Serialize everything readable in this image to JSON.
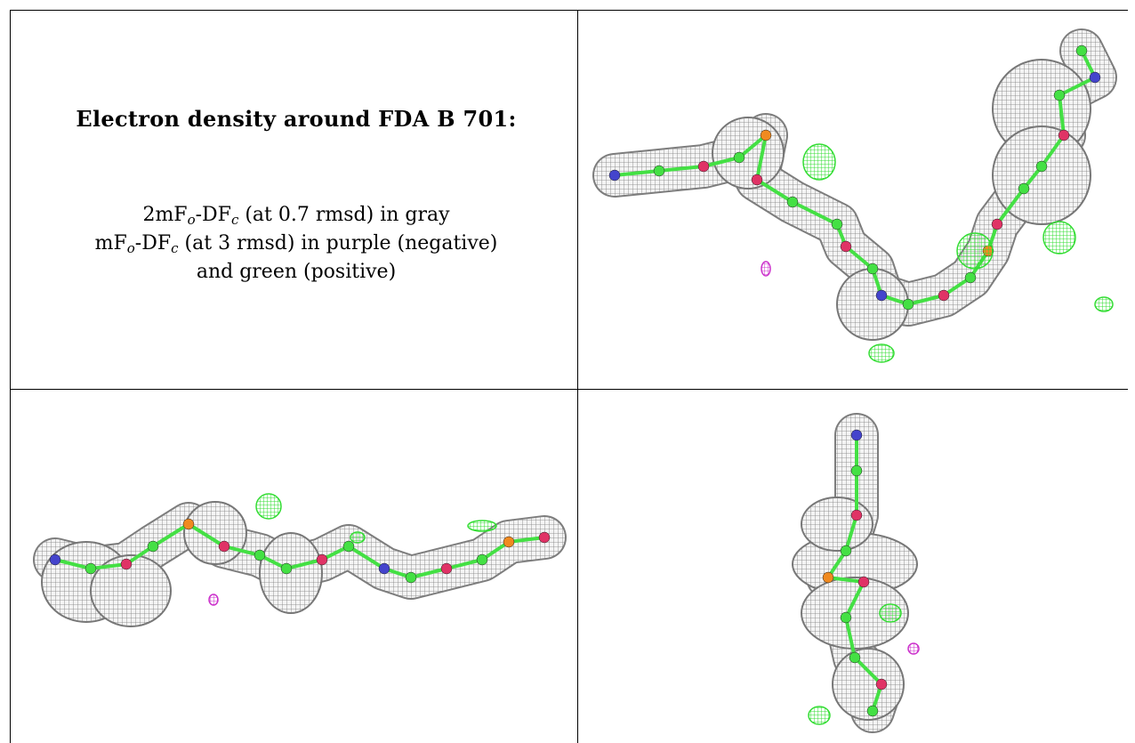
{
  "caption": {
    "title": "Electron density around FDA B 701:",
    "line1": {
      "a": "2mF",
      "b": "o",
      "c": "-DF",
      "d": "c",
      "e": " (at 0.7 rmsd) in gray"
    },
    "line2": {
      "a": "mF",
      "b": "o",
      "c": "-DF",
      "d": "c",
      "e": " (at 3 rmsd) in purple (negative)"
    },
    "line3": "and green (positive)"
  },
  "colors": {
    "map_2fofc": "#8a8a8a",
    "map_fofc_negative": "#cc33cc",
    "map_fofc_positive": "#33dd33",
    "carbon": "#44e044",
    "nitrogen": "#4444cc",
    "oxygen": "#e03366",
    "phosphorus": "#f08a20"
  },
  "panels": [
    {
      "id": "caption-panel"
    },
    {
      "id": "view-top-right"
    },
    {
      "id": "view-bottom-left"
    },
    {
      "id": "view-bottom-right"
    }
  ]
}
